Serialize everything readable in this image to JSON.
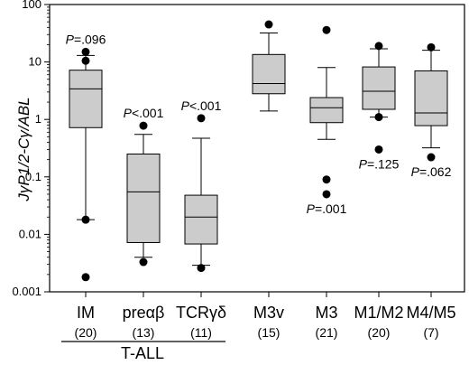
{
  "chart_data": {
    "type": "boxplot",
    "ylabel": "JγP1/2-Cγ/ABL",
    "yscale": "log",
    "ylim": [
      0.001,
      100
    ],
    "yticks": [
      "0.001",
      "0.01",
      "0.1",
      "1",
      "10",
      "100"
    ],
    "group_label": "T-ALL",
    "categories": [
      {
        "name": "IM",
        "n": "(20)",
        "p": "P=.096",
        "p_pos": "above",
        "q1": 0.72,
        "median": 3.4,
        "q3": 7.2,
        "whisker_low": 0.018,
        "whisker_high": 13,
        "outliers": [
          15,
          10.5,
          0.018,
          0.0018
        ]
      },
      {
        "name": "preαβ",
        "n": "(13)",
        "p": "P<.001",
        "p_pos": "above",
        "q1": 0.0072,
        "median": 0.055,
        "q3": 0.25,
        "whisker_low": 0.004,
        "whisker_high": 0.55,
        "outliers": [
          0.78,
          0.0033
        ]
      },
      {
        "name": "TCRγδ",
        "n": "(11)",
        "p": "P<.001",
        "p_pos": "above",
        "q1": 0.0068,
        "median": 0.02,
        "q3": 0.048,
        "whisker_low": 0.0029,
        "whisker_high": 0.47,
        "outliers": [
          1.05,
          0.0026
        ]
      },
      {
        "name": "M3v",
        "n": "(15)",
        "p": "",
        "p_pos": "",
        "q1": 2.8,
        "median": 4.2,
        "q3": 13.5,
        "whisker_low": 1.4,
        "whisker_high": 32,
        "outliers": [
          45
        ]
      },
      {
        "name": "M3",
        "n": "(21)",
        "p": "P=.001",
        "p_pos": "below",
        "q1": 0.88,
        "median": 1.6,
        "q3": 2.4,
        "whisker_low": 0.45,
        "whisker_high": 8,
        "outliers": [
          36,
          0.09,
          0.05
        ]
      },
      {
        "name": "M1/M2",
        "n": "(20)",
        "p": "P=.125",
        "p_pos": "below",
        "q1": 1.5,
        "median": 3.1,
        "q3": 8.2,
        "whisker_low": 1.1,
        "whisker_high": 17,
        "outliers": [
          19,
          1.1,
          0.3
        ]
      },
      {
        "name": "M4/M5",
        "n": "(7)",
        "p": "P=.062",
        "p_pos": "below",
        "q1": 0.78,
        "median": 1.3,
        "q3": 7,
        "whisker_low": 0.32,
        "whisker_high": 16,
        "outliers": [
          18,
          0.22
        ]
      }
    ]
  },
  "colors": {
    "box_fill": "#cccccc",
    "stroke": "#000000"
  }
}
